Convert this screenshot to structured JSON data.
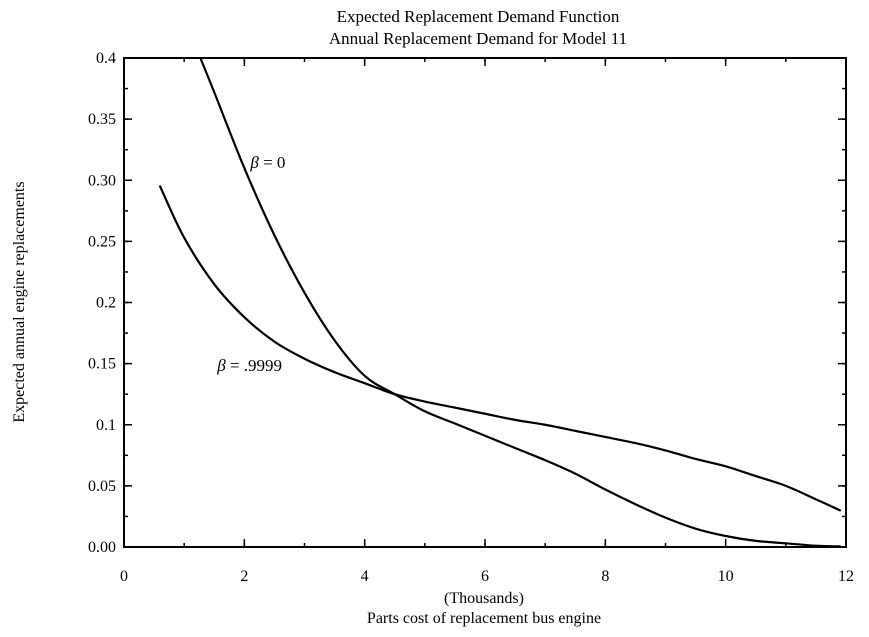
{
  "chart_data": {
    "type": "line",
    "title": "Expected Replacement Demand Function",
    "subtitle": "Annual Replacement Demand for Model 11",
    "xlabel_units": "(Thousands)",
    "xlabel": "Parts cost of replacement bus engine",
    "ylabel": "Expected annual engine replacements",
    "xlim": [
      0,
      12
    ],
    "ylim": [
      0,
      0.4
    ],
    "x_ticks": [
      "0",
      "2",
      "4",
      "6",
      "8",
      "10",
      "12"
    ],
    "y_ticks": [
      "0.00",
      "0.05",
      "0.1",
      "0.15",
      "0.2",
      "0.25",
      "0.30",
      "0.35",
      "0.4"
    ],
    "grid": false,
    "legend": "none",
    "series": [
      {
        "name": "β = 0",
        "points": [
          [
            1.27,
            0.4
          ],
          [
            1.5,
            0.372
          ],
          [
            2.0,
            0.31
          ],
          [
            2.5,
            0.255
          ],
          [
            3.0,
            0.208
          ],
          [
            3.5,
            0.169
          ],
          [
            4.0,
            0.14
          ],
          [
            4.5,
            0.125
          ],
          [
            5.0,
            0.111
          ],
          [
            5.5,
            0.101
          ],
          [
            6.0,
            0.091
          ],
          [
            6.5,
            0.081
          ],
          [
            7.0,
            0.071
          ],
          [
            7.5,
            0.06
          ],
          [
            8.0,
            0.047
          ],
          [
            8.5,
            0.035
          ],
          [
            9.0,
            0.024
          ],
          [
            9.5,
            0.015
          ],
          [
            10.0,
            0.009
          ],
          [
            10.5,
            0.005
          ],
          [
            11.0,
            0.003
          ],
          [
            11.5,
            0.001
          ],
          [
            11.9,
            0.0005
          ]
        ]
      },
      {
        "name": "β = .9999",
        "points": [
          [
            0.6,
            0.295
          ],
          [
            1.0,
            0.253
          ],
          [
            1.5,
            0.215
          ],
          [
            2.0,
            0.188
          ],
          [
            2.5,
            0.168
          ],
          [
            3.0,
            0.154
          ],
          [
            3.5,
            0.143
          ],
          [
            4.0,
            0.134
          ],
          [
            4.5,
            0.125
          ],
          [
            5.0,
            0.119
          ],
          [
            5.5,
            0.114
          ],
          [
            6.0,
            0.109
          ],
          [
            6.5,
            0.104
          ],
          [
            7.0,
            0.1
          ],
          [
            7.5,
            0.095
          ],
          [
            8.0,
            0.09
          ],
          [
            8.5,
            0.085
          ],
          [
            9.0,
            0.079
          ],
          [
            9.5,
            0.072
          ],
          [
            10.0,
            0.066
          ],
          [
            10.5,
            0.058
          ],
          [
            11.0,
            0.05
          ],
          [
            11.5,
            0.039
          ],
          [
            11.9,
            0.03
          ]
        ]
      }
    ],
    "annotations": [
      {
        "text_prefix": "β",
        "text_suffix": " = 0",
        "x": 2.1,
        "y": 0.31
      },
      {
        "text_prefix": "β",
        "text_suffix": " = .9999",
        "x": 1.55,
        "y": 0.144
      }
    ]
  }
}
